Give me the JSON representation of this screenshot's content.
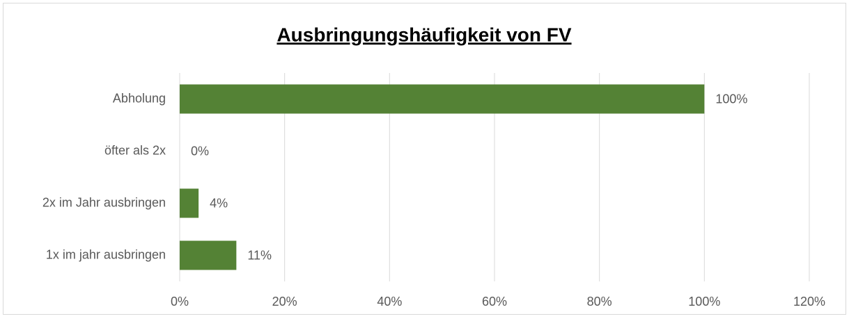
{
  "chart_data": {
    "type": "bar",
    "orientation": "horizontal",
    "title": "Ausbringungshäufigkeit von FV",
    "categories": [
      "Abholung",
      "öfter als 2x",
      "2x im Jahr ausbringen",
      "1x im jahr ausbringen"
    ],
    "values": [
      100,
      0,
      3.6,
      10.8
    ],
    "value_labels": [
      "100%",
      "0%",
      "4%",
      "11%"
    ],
    "color": "#548235",
    "xlim": [
      0,
      120
    ],
    "xticks": [
      {
        "value": 0,
        "label": "0%"
      },
      {
        "value": 20,
        "label": "20%"
      },
      {
        "value": 40,
        "label": "40%"
      },
      {
        "value": 60,
        "label": "60%"
      },
      {
        "value": 80,
        "label": "80%"
      },
      {
        "value": 100,
        "label": "100%"
      },
      {
        "value": 120,
        "label": "120%"
      }
    ],
    "grid": true
  }
}
